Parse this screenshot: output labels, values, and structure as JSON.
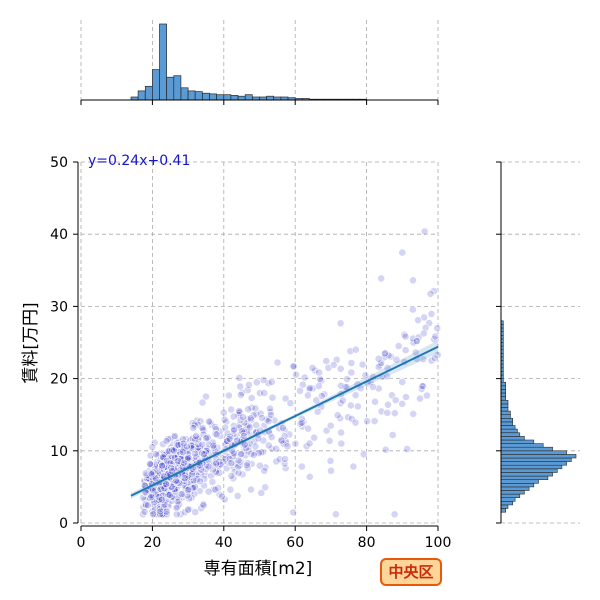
{
  "chart_data": {
    "type": "scatter",
    "xlabel": "専有面積[m2]",
    "ylabel": "賃料[万円]",
    "xlim": [
      0,
      100
    ],
    "ylim": [
      0,
      50
    ],
    "x_ticks": [
      0,
      20,
      40,
      60,
      80,
      100
    ],
    "y_ticks": [
      0,
      10,
      20,
      30,
      40,
      50
    ],
    "grid": true,
    "regression": {
      "slope": 0.24,
      "intercept": 0.41,
      "x_range": [
        14,
        100
      ],
      "label": "y=0.24x+0.41"
    },
    "point_color": "#3a3acf",
    "line_color": "#1f77b4",
    "points_seed": 7,
    "points_count": 1000,
    "x_marginal_hist": {
      "bin_width": 2,
      "x_start": 14,
      "counts": [
        4,
        12,
        18,
        40,
        100,
        30,
        32,
        16,
        12,
        11,
        9,
        8,
        7,
        7,
        6,
        5,
        7,
        4,
        4,
        5,
        4,
        4,
        3,
        2,
        2,
        1,
        1,
        1,
        1,
        1,
        1,
        1,
        1
      ]
    },
    "y_marginal_hist": {
      "bin_width": 0.5,
      "y_start": 1.5,
      "counts": [
        2,
        3,
        5,
        6,
        8,
        10,
        12,
        14,
        16,
        20,
        22,
        24,
        26,
        28,
        30,
        32,
        28,
        22,
        18,
        14,
        10,
        8,
        7,
        6,
        5,
        5,
        4,
        4,
        3,
        3,
        3,
        2,
        2,
        2,
        2,
        2,
        1,
        1,
        1,
        1,
        1,
        1,
        1,
        1,
        1,
        1,
        1,
        1,
        1,
        1,
        1,
        1,
        1
      ]
    }
  },
  "badge": {
    "label": "中央区"
  }
}
